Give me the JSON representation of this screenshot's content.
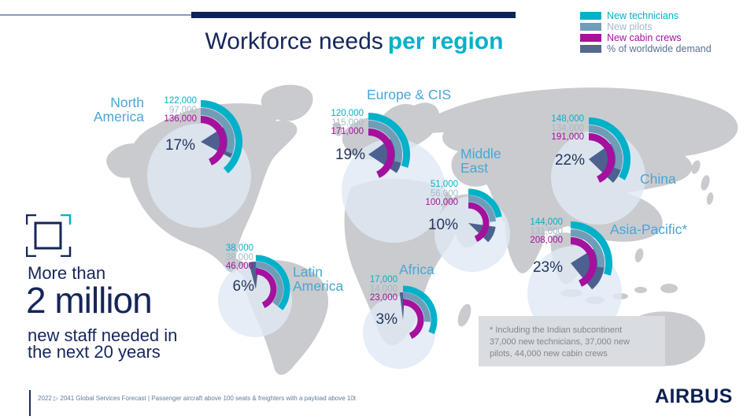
{
  "title": {
    "prefix": "Workforce needs",
    "highlight": "per region"
  },
  "legend": {
    "items": [
      {
        "label": "New technicians",
        "swatch": "#00b1ca",
        "text": "#00b1ca"
      },
      {
        "label": "New pilots",
        "swatch": "#6f9db8",
        "text": "#a5b9c8"
      },
      {
        "label": "New cabin crews",
        "swatch": "#a5109e",
        "text": "#a5109e"
      },
      {
        "label": "% of worldwide demand",
        "swatch": "#55688e",
        "text": "#5a7096"
      }
    ]
  },
  "headline": {
    "line1": "More than",
    "line2": "2 million",
    "line3": "new staff needed in",
    "line4": "the next 20 years"
  },
  "footnote": {
    "lines": [
      "* Including the Indian subcontinent",
      "37,000 new technicians, 37,000 new",
      "pilots, 44,000 new cabin crews"
    ]
  },
  "footer": {
    "text": "2022 ▷ 2041 Global Services Forecast | Passenger aircraft above 100 seats & freighters with a payload above 10t"
  },
  "brand": {
    "logo_text": "AIRBUS"
  },
  "colors": {
    "technicians": "#00b1ca",
    "pilots": "#6f9db8",
    "pilots_text": "#a5b9c8",
    "cabin_crews": "#a5109e",
    "demand_wedge": "#4d6190",
    "navy": "#16265a",
    "region_label": "#4aa6d6",
    "pale_circle": "#dfe9f4",
    "map_gray": "#c9cbce"
  },
  "chart_data": {
    "type": "gauge-map",
    "title": "Workforce needs per region",
    "series_labels": [
      "New technicians",
      "New pilots",
      "New cabin crews",
      "% of worldwide demand"
    ],
    "headline": "More than 2 million new staff needed in the next 20 years",
    "note": "* Including the Indian subcontinent 37,000 new technicians, 37,000 new pilots, 44,000 new cabin crews",
    "regions": [
      {
        "id": "north-america",
        "name": "North America",
        "technicians": 122000,
        "pilots": 97000,
        "cabin_crews": 136000,
        "pct_worldwide_demand": 17,
        "display": {
          "technicians": "122,000",
          "pilots": "97,000",
          "cabin_crews": "136,000",
          "pct": "17%"
        }
      },
      {
        "id": "europe-cis",
        "name": "Europe & CIS",
        "technicians": 120000,
        "pilots": 115000,
        "cabin_crews": 171000,
        "pct_worldwide_demand": 19,
        "display": {
          "technicians": "120,000",
          "pilots": "115,000",
          "cabin_crews": "171,000",
          "pct": "19%"
        }
      },
      {
        "id": "middle-east",
        "name": "Middle East",
        "technicians": 51000,
        "pilots": 56000,
        "cabin_crews": 100000,
        "pct_worldwide_demand": 10,
        "display": {
          "technicians": "51,000",
          "pilots": "56,000",
          "cabin_crews": "100,000",
          "pct": "10%"
        }
      },
      {
        "id": "china",
        "name": "China",
        "technicians": 148000,
        "pilots": 134000,
        "cabin_crews": 191000,
        "pct_worldwide_demand": 22,
        "display": {
          "technicians": "148,000",
          "pilots": "134,000",
          "cabin_crews": "191,000",
          "pct": "22%"
        }
      },
      {
        "id": "asia-pacific",
        "name": "Asia-Pacific*",
        "technicians": 144000,
        "pilots": 131000,
        "cabin_crews": 208000,
        "pct_worldwide_demand": 23,
        "display": {
          "technicians": "144,000",
          "pilots": "131,000",
          "cabin_crews": "208,000",
          "pct": "23%"
        }
      },
      {
        "id": "latin-america",
        "name": "Latin America",
        "technicians": 38000,
        "pilots": 38000,
        "cabin_crews": 46000,
        "pct_worldwide_demand": 6,
        "display": {
          "technicians": "38,000",
          "pilots": "38,000",
          "cabin_crews": "46,000",
          "pct": "6%"
        }
      },
      {
        "id": "africa",
        "name": "Africa",
        "technicians": 17000,
        "pilots": 14000,
        "cabin_crews": 23000,
        "pct_worldwide_demand": 3,
        "display": {
          "technicians": "17,000",
          "pilots": "14,000",
          "cabin_crews": "23,000",
          "pct": "3%"
        }
      }
    ]
  }
}
